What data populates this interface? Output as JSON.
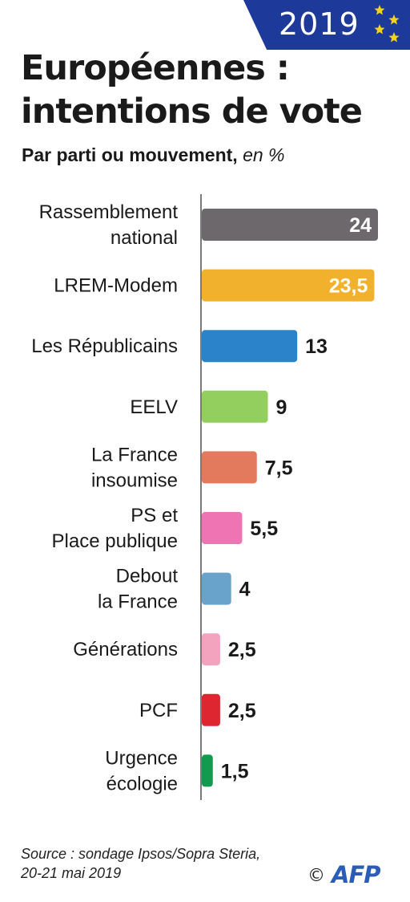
{
  "badge": {
    "year": "2019",
    "icon": "eu-stars-icon"
  },
  "title": {
    "line1": "Européennes :",
    "line2": "intentions de vote"
  },
  "subtitle": {
    "main": "Par parti ou mouvement,",
    "unit": "en %"
  },
  "chart_data": {
    "type": "bar",
    "orientation": "horizontal",
    "title": "Européennes : intentions de vote",
    "subtitle": "Par parti ou mouvement, en %",
    "categories": [
      [
        "Rassemblement",
        "national"
      ],
      [
        "LREM-Modem"
      ],
      [
        "Les Républicains"
      ],
      [
        "EELV"
      ],
      [
        "La France",
        "insoumise"
      ],
      [
        "PS et",
        "Place publique"
      ],
      [
        "Debout",
        "la France"
      ],
      [
        "Générations"
      ],
      [
        "PCF"
      ],
      [
        "Urgence",
        "écologie"
      ]
    ],
    "values": [
      24,
      23.5,
      13,
      9,
      7.5,
      5.5,
      4,
      2.5,
      2.5,
      1.5
    ],
    "value_labels": [
      "24",
      "23,5",
      "13",
      "9",
      "7,5",
      "5,5",
      "4",
      "2,5",
      "2,5",
      "1,5"
    ],
    "colors": [
      "#6d686c",
      "#f2b12c",
      "#2b84c9",
      "#93cf5e",
      "#e37a5d",
      "#ee74b3",
      "#69a3cc",
      "#f3a3bd",
      "#dd262f",
      "#129a4e"
    ],
    "label_inside": [
      true,
      true,
      false,
      false,
      false,
      false,
      false,
      false,
      false,
      false
    ],
    "xlim": [
      0,
      24
    ],
    "grid": false,
    "legend": "none"
  },
  "source": {
    "line1": "Source : sondage Ipsos/Sopra Steria,",
    "line2": "20-21 mai 2019"
  },
  "credit": {
    "copyright": "©",
    "logo": "AFP"
  }
}
